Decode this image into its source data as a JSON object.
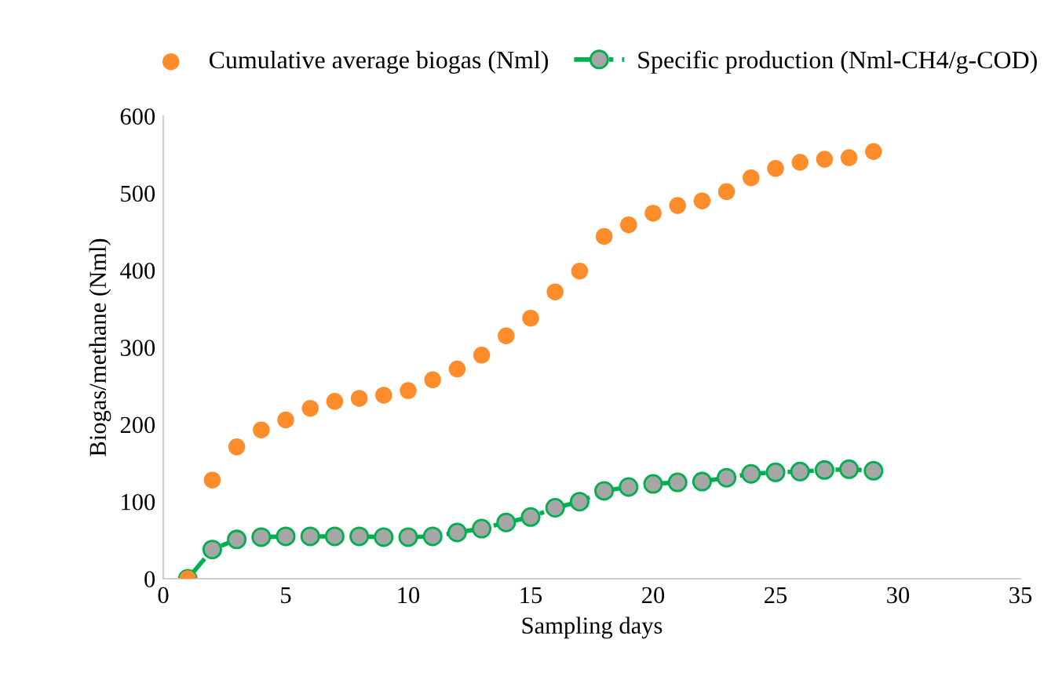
{
  "chart_data": {
    "type": "line",
    "xlabel": "Sampling days",
    "ylabel": "Biogas/methane (Nml)",
    "xlim": [
      0,
      35
    ],
    "xticks": [
      0,
      5,
      10,
      15,
      20,
      25,
      30,
      35
    ],
    "ylim": [
      0,
      600
    ],
    "yticks": [
      0,
      100,
      200,
      300,
      400,
      500,
      600
    ],
    "grid": false,
    "legend": "top",
    "series": [
      {
        "name": "Cumulative average biogas (Nml)",
        "type": "scatter",
        "color": "#ff8c2a",
        "marker": "circle",
        "x": [
          1,
          2,
          3,
          4,
          5,
          6,
          7,
          8,
          9,
          10,
          11,
          12,
          13,
          14,
          15,
          16,
          17,
          18,
          19,
          20,
          21,
          22,
          23,
          24,
          25,
          26,
          27,
          28,
          29
        ],
        "values": [
          0,
          128,
          171,
          193,
          206,
          221,
          230,
          234,
          238,
          244,
          258,
          272,
          290,
          315,
          338,
          372,
          399,
          444,
          459,
          474,
          484,
          490,
          502,
          520,
          532,
          540,
          544,
          546,
          554
        ]
      },
      {
        "name": "Specific production (Nml-CH4/g-COD)",
        "color": "#00b050",
        "marker": "circle",
        "line_style": "dashed",
        "x": [
          1,
          2,
          3,
          4,
          5,
          6,
          7,
          8,
          9,
          10,
          11,
          12,
          13,
          14,
          15,
          16,
          17,
          18,
          19,
          20,
          21,
          22,
          23,
          24,
          25,
          26,
          27,
          28,
          29
        ],
        "values": [
          0,
          38,
          51,
          54,
          55,
          55,
          55,
          55,
          54,
          54,
          55,
          60,
          65,
          73,
          80,
          92,
          100,
          114,
          119,
          123,
          125,
          126,
          131,
          136,
          138,
          139,
          141,
          142,
          140
        ]
      }
    ]
  }
}
